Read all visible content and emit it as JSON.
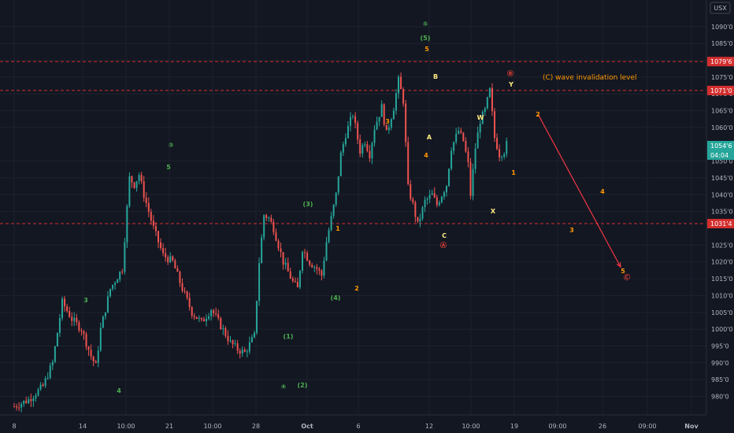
{
  "currency_badge": "USX",
  "note_text": "(C) wave invalidation level",
  "colors": {
    "background": "#131722",
    "grid": "#1e222d",
    "up_candle": "#26a69a",
    "down_candle": "#ef5350",
    "level_line": "#d32f2f",
    "level_tag_bg": "#d32f2f",
    "current_price_bg": "#26a69a",
    "axis_text": "#b2b5be",
    "green_labels": "#4caf50",
    "orange_labels": "#ff9800",
    "yellow_labels": "#ffeb80",
    "red_labels": "#f44336",
    "note_text": "#ff9800"
  },
  "chart_data": {
    "type": "candlestick",
    "y_ticks": [
      "1090'0",
      "1085'0",
      "1080'0",
      "1075'0",
      "1070'0",
      "1065'0",
      "1060'0",
      "1050'0",
      "1045'0",
      "1040'0",
      "1035'0",
      "1025'0",
      "1020'0",
      "1015'0",
      "1010'0",
      "1005'0",
      "1000'0",
      "995'0",
      "990'0",
      "985'0",
      "980'0"
    ],
    "x_ticks": [
      "8",
      "14",
      "10:00",
      "21",
      "10:00",
      "28",
      "Oct",
      "6",
      "12",
      "10:00",
      "19",
      "09:00",
      "26",
      "09:00",
      "Nov"
    ],
    "levels": [
      {
        "label": "1079'6",
        "value": 1079.6
      },
      {
        "label": "1071'0",
        "value": 1071.0
      },
      {
        "label": "1031'4",
        "value": 1031.4
      }
    ],
    "current_price": {
      "price": "1054'6",
      "countdown": "04:04",
      "value": 1054.6
    },
    "close_path": [
      [
        0,
        977
      ],
      [
        6,
        979
      ],
      [
        12,
        983
      ],
      [
        16,
        990
      ],
      [
        20,
        1008
      ],
      [
        24,
        1003
      ],
      [
        28,
        1000
      ],
      [
        32,
        992
      ],
      [
        34,
        989
      ],
      [
        36,
        1000
      ],
      [
        40,
        1012
      ],
      [
        45,
        1018
      ],
      [
        48,
        1045
      ],
      [
        50,
        1043
      ],
      [
        52,
        1046
      ],
      [
        54,
        1040
      ],
      [
        58,
        1030
      ],
      [
        62,
        1022
      ],
      [
        66,
        1020
      ],
      [
        70,
        1012
      ],
      [
        74,
        1005
      ],
      [
        78,
        1002
      ],
      [
        82,
        1006
      ],
      [
        86,
        1001
      ],
      [
        90,
        996
      ],
      [
        93,
        994
      ],
      [
        96,
        993
      ],
      [
        100,
        998
      ],
      [
        102,
        1020
      ],
      [
        104,
        1034
      ],
      [
        106,
        1033
      ],
      [
        108,
        1030
      ],
      [
        112,
        1020
      ],
      [
        116,
        1014
      ],
      [
        118,
        1012
      ],
      [
        120,
        1024
      ],
      [
        123,
        1020
      ],
      [
        126,
        1018
      ],
      [
        128,
        1016
      ],
      [
        130,
        1026
      ],
      [
        134,
        1040
      ],
      [
        136,
        1052
      ],
      [
        138,
        1058
      ],
      [
        141,
        1064
      ],
      [
        144,
        1053
      ],
      [
        146,
        1056
      ],
      [
        148,
        1052
      ],
      [
        150,
        1060
      ],
      [
        153,
        1066
      ],
      [
        155,
        1058
      ],
      [
        158,
        1066
      ],
      [
        160,
        1074
      ],
      [
        162,
        1068
      ],
      [
        164,
        1042
      ],
      [
        166,
        1037
      ],
      [
        168,
        1031
      ],
      [
        171,
        1038
      ],
      [
        174,
        1040
      ],
      [
        176,
        1037
      ],
      [
        180,
        1043
      ],
      [
        182,
        1054
      ],
      [
        185,
        1059
      ],
      [
        187,
        1056
      ],
      [
        189,
        1049
      ],
      [
        190,
        1040
      ],
      [
        192,
        1054
      ],
      [
        194,
        1062
      ],
      [
        196,
        1065
      ],
      [
        198,
        1071
      ],
      [
        200,
        1057
      ],
      [
        202,
        1052
      ],
      [
        204,
        1053
      ],
      [
        205,
        1055
      ]
    ],
    "forecast": [
      {
        "t": 206,
        "price": 1064.0
      },
      {
        "t": 237,
        "price": 1018.5
      }
    ],
    "wave_labels": [
      {
        "text": "③",
        "t": 48,
        "price": 1053.5,
        "color": "green"
      },
      {
        "text": "5",
        "t": 48,
        "price": 1047.5,
        "color": "green"
      },
      {
        "text": "3",
        "t": 20,
        "price": 1010.2,
        "color": "green"
      },
      {
        "text": "4",
        "t": 34,
        "price": 986.5,
        "color": "green"
      },
      {
        "text": "(1)",
        "t": 87,
        "price": 1000.0,
        "color": "green"
      },
      {
        "text": "④",
        "t": 85,
        "price": 987.5,
        "color": "green"
      },
      {
        "text": "(2)",
        "t": 91,
        "price": 987.5,
        "color": "green"
      },
      {
        "text": "(3)",
        "t": 92,
        "price": 1036.0,
        "color": "green"
      },
      {
        "text": "(4)",
        "t": 101,
        "price": 1010.5,
        "color": "green"
      },
      {
        "text": "⑤",
        "t": 128,
        "price": 1090.5,
        "color": "green"
      },
      {
        "text": "(5)",
        "t": 128,
        "price": 1086.5,
        "color": "green"
      },
      {
        "text": "1",
        "t": 102,
        "price": 1030.0,
        "color": "orange"
      },
      {
        "text": "2",
        "t": 107,
        "price": 1013.5,
        "color": "orange"
      },
      {
        "text": "3",
        "t": 116,
        "price": 1062.5,
        "color": "orange"
      },
      {
        "text": "4",
        "t": 127,
        "price": 1051.0,
        "color": "orange"
      },
      {
        "text": "5",
        "t": 128,
        "price": 1082.5,
        "color": "orange"
      },
      {
        "text": "A",
        "t": 129,
        "price": 1056.0,
        "color": "yellow"
      },
      {
        "text": "B",
        "t": 131,
        "price": 1075.5,
        "color": "yellow"
      },
      {
        "text": "C",
        "t": 134,
        "price": 1028.0,
        "color": "yellow"
      },
      {
        "text": "Ⓐ",
        "t": 134,
        "price": 1024.5,
        "color": "red"
      },
      {
        "text": "W",
        "t": 145,
        "price": 1063.5,
        "color": "yellow"
      },
      {
        "text": "X",
        "t": 149,
        "price": 1036.0,
        "color": "yellow"
      },
      {
        "text": "Ⓑ",
        "t": 155,
        "price": 1075.5,
        "color": "red"
      },
      {
        "text": "Y",
        "t": 155,
        "price": 1072.0,
        "color": "yellow"
      },
      {
        "text": "1",
        "t": 155,
        "price": 1048.0,
        "color": "orange"
      },
      {
        "text": "2",
        "t": 163,
        "price": 1064.5,
        "color": "orange"
      },
      {
        "text": "4",
        "t": 182,
        "price": 1041.5,
        "color": "orange"
      },
      {
        "text": "3",
        "t": 173,
        "price": 1031.0,
        "color": "orange"
      },
      {
        "text": "5",
        "t": 189,
        "price": 1017.5,
        "color": "orange"
      },
      {
        "text": "Ⓒ",
        "t": 190,
        "price": 1015.5,
        "color": "red"
      }
    ]
  }
}
